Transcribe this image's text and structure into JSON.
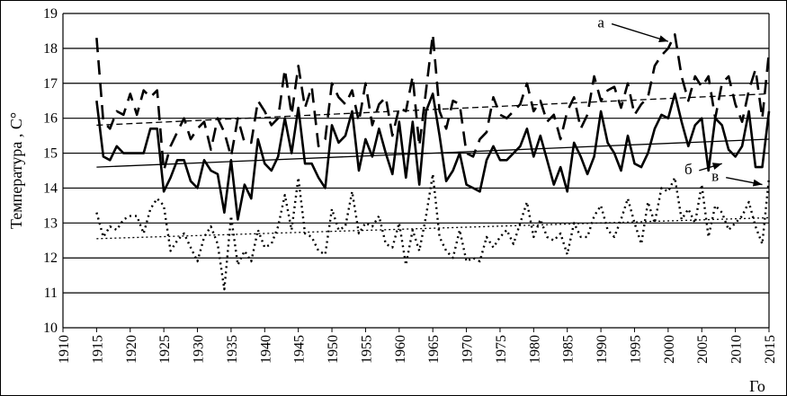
{
  "chart_data": {
    "type": "line",
    "ylabel": "Температура , С°",
    "xlabel": "Го",
    "xlim": [
      1910,
      2015
    ],
    "ylim": [
      10,
      19
    ],
    "xticks": [
      1910,
      1915,
      1920,
      1925,
      1930,
      1935,
      1940,
      1945,
      1950,
      1955,
      1960,
      1965,
      1970,
      1975,
      1980,
      1985,
      1990,
      1995,
      2000,
      2005,
      2010,
      2015
    ],
    "yticks": [
      10,
      11,
      12,
      13,
      14,
      15,
      16,
      17,
      18,
      19
    ],
    "grid": "horizontal",
    "years": [
      1915,
      1916,
      1917,
      1918,
      1919,
      1920,
      1921,
      1922,
      1923,
      1924,
      1925,
      1926,
      1927,
      1928,
      1929,
      1930,
      1931,
      1932,
      1933,
      1934,
      1935,
      1936,
      1937,
      1938,
      1939,
      1940,
      1941,
      1942,
      1943,
      1944,
      1945,
      1946,
      1947,
      1948,
      1949,
      1950,
      1951,
      1952,
      1953,
      1954,
      1955,
      1956,
      1957,
      1958,
      1959,
      1960,
      1961,
      1962,
      1963,
      1964,
      1965,
      1966,
      1967,
      1968,
      1969,
      1970,
      1971,
      1972,
      1973,
      1974,
      1975,
      1976,
      1977,
      1978,
      1979,
      1980,
      1981,
      1982,
      1983,
      1984,
      1985,
      1986,
      1987,
      1988,
      1989,
      1990,
      1991,
      1992,
      1993,
      1994,
      1995,
      1996,
      1997,
      1998,
      1999,
      2000,
      2001,
      2002,
      2003,
      2004,
      2005,
      2006,
      2007,
      2008,
      2009,
      2010,
      2011,
      2012,
      2013,
      2014,
      2015
    ],
    "series": [
      {
        "name": "а",
        "style": "dashed",
        "values": [
          18.3,
          15.9,
          15.7,
          16.2,
          16.1,
          16.7,
          16.1,
          16.8,
          16.6,
          16.8,
          14.5,
          15.2,
          15.6,
          16.0,
          15.4,
          15.7,
          15.9,
          15.1,
          16.0,
          15.6,
          14.9,
          16.0,
          15.3,
          15.3,
          16.5,
          16.2,
          15.8,
          16.0,
          17.4,
          16.1,
          17.5,
          16.3,
          16.9,
          15.2,
          15.4,
          17.0,
          16.6,
          16.4,
          16.8,
          15.9,
          17.0,
          15.8,
          16.4,
          16.6,
          15.5,
          16.3,
          16.2,
          17.2,
          15.2,
          16.8,
          18.4,
          16.2,
          15.7,
          16.5,
          16.4,
          15.0,
          14.9,
          15.4,
          15.6,
          16.6,
          16.1,
          16.0,
          16.2,
          16.4,
          17.0,
          16.2,
          16.5,
          15.9,
          16.1,
          15.4,
          16.2,
          16.6,
          15.7,
          16.1,
          17.2,
          16.5,
          16.8,
          16.9,
          16.3,
          17.0,
          16.1,
          16.4,
          16.6,
          17.5,
          17.8,
          18.0,
          18.4,
          17.2,
          16.5,
          17.2,
          16.9,
          17.2,
          16.0,
          17.0,
          17.2,
          16.4,
          15.9,
          16.8,
          17.4,
          16.0,
          17.9
        ]
      },
      {
        "name": "б",
        "style": "solid",
        "values": [
          16.5,
          14.9,
          14.8,
          15.2,
          15.0,
          15.0,
          15.0,
          15.0,
          15.7,
          15.7,
          13.9,
          14.3,
          14.8,
          14.8,
          14.2,
          14.0,
          14.8,
          14.5,
          14.4,
          13.3,
          14.8,
          13.1,
          14.1,
          13.7,
          15.4,
          14.7,
          14.5,
          14.9,
          16.0,
          15.0,
          16.3,
          14.7,
          14.7,
          14.3,
          14.0,
          15.8,
          15.3,
          15.5,
          16.2,
          14.5,
          15.4,
          14.9,
          15.7,
          15.0,
          14.4,
          15.9,
          14.3,
          15.9,
          14.1,
          16.2,
          16.7,
          15.5,
          14.2,
          14.5,
          15.0,
          14.1,
          14.0,
          13.9,
          14.8,
          15.2,
          14.8,
          14.8,
          15.0,
          15.2,
          15.7,
          14.9,
          15.5,
          14.8,
          14.1,
          14.6,
          13.9,
          15.3,
          14.9,
          14.4,
          14.9,
          16.2,
          15.3,
          15.0,
          14.5,
          15.5,
          14.7,
          14.6,
          15.0,
          15.7,
          16.1,
          16.0,
          16.7,
          15.9,
          15.2,
          15.8,
          16.0,
          14.5,
          16.0,
          15.8,
          15.1,
          14.9,
          15.2,
          16.2,
          14.6,
          14.6,
          16.2
        ]
      },
      {
        "name": "в",
        "style": "dotted",
        "values": [
          13.3,
          12.6,
          12.9,
          12.8,
          13.1,
          13.2,
          13.2,
          12.7,
          13.4,
          13.7,
          13.5,
          12.2,
          12.5,
          12.7,
          12.3,
          11.9,
          12.6,
          12.9,
          12.4,
          11.1,
          13.2,
          11.8,
          12.2,
          11.9,
          12.8,
          12.3,
          12.4,
          12.9,
          13.8,
          12.8,
          14.3,
          12.7,
          12.6,
          12.2,
          12.1,
          13.4,
          12.8,
          12.9,
          13.9,
          12.7,
          13.0,
          12.9,
          13.2,
          12.4,
          12.3,
          13.0,
          11.8,
          12.8,
          12.2,
          13.2,
          14.4,
          12.6,
          12.2,
          12.0,
          12.8,
          11.9,
          12.0,
          11.9,
          12.6,
          12.3,
          12.6,
          12.8,
          12.4,
          13.0,
          13.6,
          12.6,
          13.1,
          12.6,
          12.5,
          12.7,
          12.1,
          13.0,
          12.6,
          12.6,
          13.2,
          13.5,
          12.8,
          12.6,
          13.1,
          13.7,
          13.0,
          12.4,
          13.6,
          13.0,
          14.0,
          13.9,
          14.3,
          13.1,
          13.4,
          13.0,
          14.1,
          12.6,
          13.5,
          13.3,
          12.8,
          13.0,
          13.2,
          13.6,
          12.9,
          12.4,
          14.3
        ]
      }
    ],
    "trends": [
      {
        "series": "а",
        "y_start": 15.8,
        "y_end": 16.7
      },
      {
        "series": "б",
        "y_start": 14.6,
        "y_end": 15.4
      },
      {
        "series": "в",
        "y_start": 12.55,
        "y_end": 13.15
      }
    ],
    "annotations": [
      {
        "label": "а",
        "x": 1990,
        "y": 18.6,
        "arrow_to": [
          2000,
          18.2
        ]
      },
      {
        "label": "б",
        "x": 2003,
        "y": 14.4,
        "arrow_to": [
          2008,
          14.7
        ]
      },
      {
        "label": "в",
        "x": 2007,
        "y": 14.2,
        "arrow_to": [
          2014,
          14.1
        ]
      }
    ]
  }
}
